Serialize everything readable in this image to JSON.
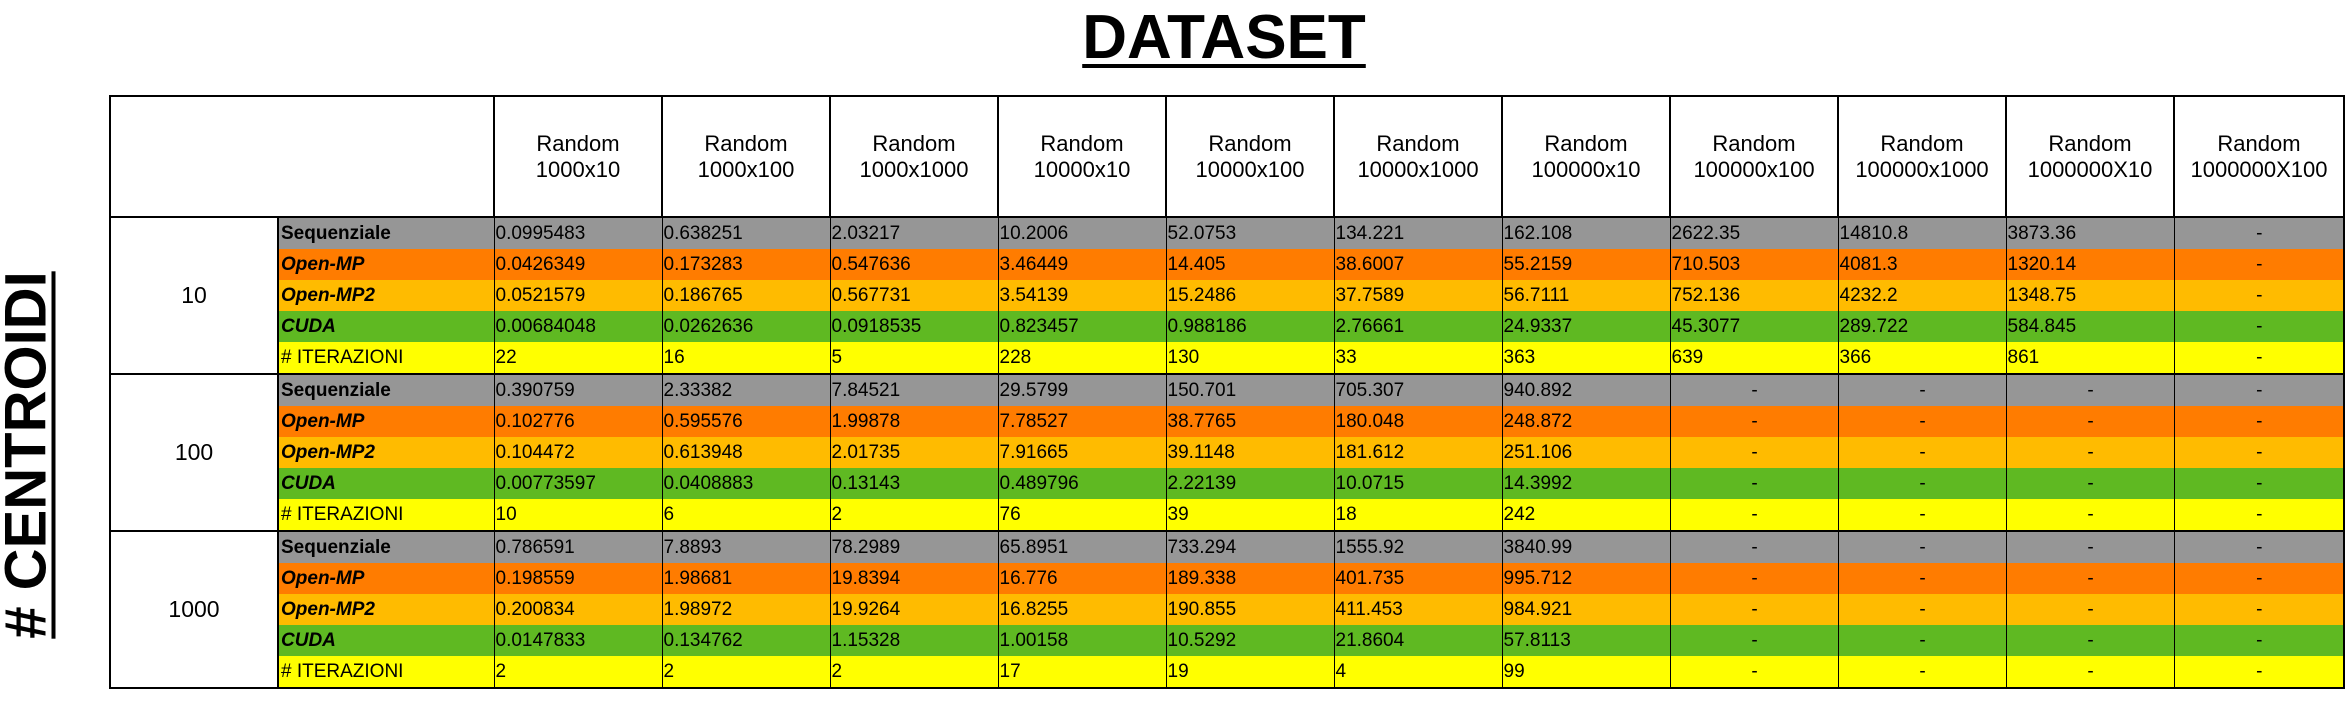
{
  "title": "DATASET",
  "side_label": "# CENTROIDI",
  "columns": [
    "Random\n1000x10",
    "Random\n1000x100",
    "Random\n1000x1000",
    "Random\n10000x10",
    "Random\n10000x100",
    "Random\n10000x1000",
    "Random\n100000x10",
    "Random\n100000x100",
    "Random\n100000x1000",
    "Random\n1000000X10",
    "Random\n1000000X100"
  ],
  "groups": [
    {
      "centroids": "10",
      "rows": [
        {
          "label": "Sequenziale",
          "values": [
            "0.0995483",
            "0.638251",
            "2.03217",
            "10.2006",
            "52.0753",
            "134.221",
            "162.108",
            "2622.35",
            "14810.8",
            "3873.36",
            "-"
          ]
        },
        {
          "label": "Open-MP",
          "values": [
            "0.0426349",
            "0.173283",
            "0.547636",
            "3.46449",
            "14.405",
            "38.6007",
            "55.2159",
            "710.503",
            "4081.3",
            "1320.14",
            "-"
          ]
        },
        {
          "label": "Open-MP2",
          "values": [
            "0.0521579",
            "0.186765",
            "0.567731",
            "3.54139",
            "15.2486",
            "37.7589",
            "56.7111",
            "752.136",
            "4232.2",
            "1348.75",
            "-"
          ]
        },
        {
          "label": "CUDA",
          "values": [
            "0.00684048",
            "0.0262636",
            "0.0918535",
            "0.823457",
            "0.988186",
            "2.76661",
            "24.9337",
            "45.3077",
            "289.722",
            "584.845",
            "-"
          ]
        },
        {
          "label": "# ITERAZIONI",
          "values": [
            "22",
            "16",
            "5",
            "228",
            "130",
            "33",
            "363",
            "639",
            "366",
            "861",
            "-"
          ]
        }
      ]
    },
    {
      "centroids": "100",
      "rows": [
        {
          "label": "Sequenziale",
          "values": [
            "0.390759",
            "2.33382",
            "7.84521",
            "29.5799",
            "150.701",
            "705.307",
            "940.892",
            "-",
            "-",
            "-",
            "-"
          ]
        },
        {
          "label": "Open-MP",
          "values": [
            "0.102776",
            "0.595576",
            "1.99878",
            "7.78527",
            "38.7765",
            "180.048",
            "248.872",
            "-",
            "-",
            "-",
            "-"
          ]
        },
        {
          "label": "Open-MP2",
          "values": [
            "0.104472",
            "0.613948",
            "2.01735",
            "7.91665",
            "39.1148",
            "181.612",
            "251.106",
            "-",
            "-",
            "-",
            "-"
          ]
        },
        {
          "label": "CUDA",
          "values": [
            "0.00773597",
            "0.0408883",
            "0.13143",
            "0.489796",
            "2.22139",
            "10.0715",
            "14.3992",
            "-",
            "-",
            "-",
            "-"
          ]
        },
        {
          "label": "# ITERAZIONI",
          "values": [
            "10",
            "6",
            "2",
            "76",
            "39",
            "18",
            "242",
            "-",
            "-",
            "-",
            "-"
          ]
        }
      ]
    },
    {
      "centroids": "1000",
      "rows": [
        {
          "label": "Sequenziale",
          "values": [
            "0.786591",
            "7.8893",
            "78.2989",
            "65.8951",
            "733.294",
            "1555.92",
            "3840.99",
            "-",
            "-",
            "-",
            "-"
          ]
        },
        {
          "label": "Open-MP",
          "values": [
            "0.198559",
            "1.98681",
            "19.8394",
            "16.776",
            "189.338",
            "401.735",
            "995.712",
            "-",
            "-",
            "-",
            "-"
          ]
        },
        {
          "label": "Open-MP2",
          "values": [
            "0.200834",
            "1.98972",
            "19.9264",
            "16.8255",
            "190.855",
            "411.453",
            "984.921",
            "-",
            "-",
            "-",
            "-"
          ]
        },
        {
          "label": "CUDA",
          "values": [
            "0.0147833",
            "0.134762",
            "1.15328",
            "1.00158",
            "10.5292",
            "21.8604",
            "57.8113",
            "-",
            "-",
            "-",
            "-"
          ]
        },
        {
          "label": "# ITERAZIONI",
          "values": [
            "2",
            "2",
            "2",
            "17",
            "19",
            "4",
            "99",
            "-",
            "-",
            "-",
            "-"
          ]
        }
      ]
    }
  ]
}
